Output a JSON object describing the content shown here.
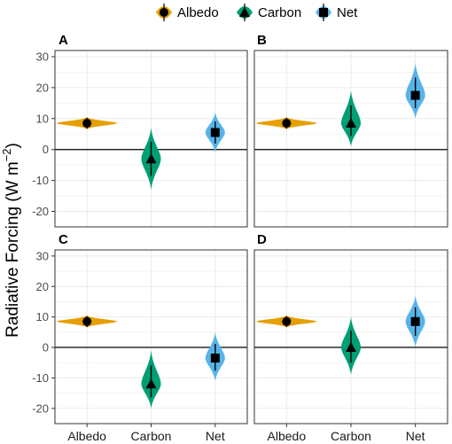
{
  "legend": {
    "position": "top",
    "items": [
      {
        "name": "Albedo",
        "color": "#E69F00",
        "marker": "circle"
      },
      {
        "name": "Carbon",
        "color": "#009E73",
        "marker": "triangle"
      },
      {
        "name": "Net",
        "color": "#56B4E9",
        "marker": "square"
      }
    ]
  },
  "chart_data": {
    "type": "violin",
    "ylabel_main": "Radiative Forcing (W m",
    "ylabel_sup": "−2",
    "ylabel_close": ")",
    "ylim": [
      -25,
      32
    ],
    "yticks": [
      "30",
      "20",
      "10",
      "0",
      "-10",
      "-20"
    ],
    "ytick_values": [
      30,
      20,
      10,
      0,
      -10,
      -20
    ],
    "categories": [
      "Albedo",
      "Carbon",
      "Net"
    ],
    "grid": true,
    "hline": 0,
    "panels": [
      {
        "label": "A",
        "values": {
          "Albedo": 8.5,
          "Carbon": -3,
          "Net": 5.5
        },
        "ranges": {
          "Albedo": [
            6.5,
            10.5
          ],
          "Carbon": [
            -13,
            7
          ],
          "Net": [
            -1,
            12
          ]
        }
      },
      {
        "label": "B",
        "values": {
          "Albedo": 8.5,
          "Carbon": 8.5,
          "Net": 17.5
        },
        "ranges": {
          "Albedo": [
            6.5,
            10.5
          ],
          "Carbon": [
            1,
            19
          ],
          "Net": [
            10,
            28
          ]
        }
      },
      {
        "label": "C",
        "values": {
          "Albedo": 8.5,
          "Carbon": -12,
          "Net": -3.5
        },
        "ranges": {
          "Albedo": [
            6.5,
            10.5
          ],
          "Carbon": [
            -20,
            -1
          ],
          "Net": [
            -11,
            5
          ]
        }
      },
      {
        "label": "D",
        "values": {
          "Albedo": 8.5,
          "Carbon": 0,
          "Net": 8.5
        },
        "ranges": {
          "Albedo": [
            6.5,
            10.5
          ],
          "Carbon": [
            -9,
            10
          ],
          "Net": [
            0,
            17
          ]
        }
      }
    ]
  }
}
